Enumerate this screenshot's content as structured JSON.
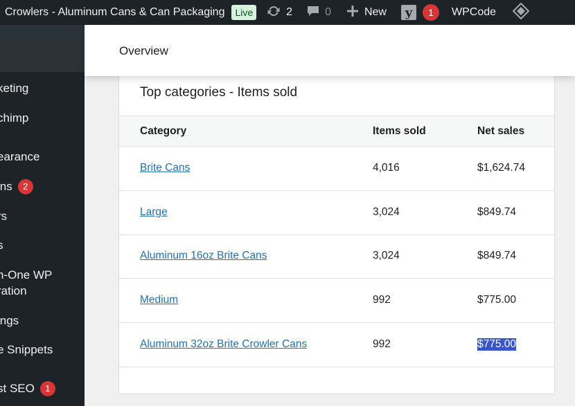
{
  "adminbar": {
    "site_title": "Crowlers - Aluminum Cans & Can Packaging",
    "live_label": "Live",
    "updates_count": "2",
    "comments_count": "0",
    "new_label": "New",
    "yoast_letter": "y",
    "yoast_badge": "1",
    "wpcode_label": "WPCode",
    "icons": [
      "updates-icon",
      "comments-icon",
      "plus-icon",
      "yoast-icon",
      "diamond-icon"
    ]
  },
  "sidebar": {
    "items": [
      {
        "label": "keting"
      },
      {
        "label": "chimp"
      },
      {
        "label": "earance"
      },
      {
        "label": "ins",
        "badge": "2"
      },
      {
        "label": "rs"
      },
      {
        "label": "s"
      },
      {
        "label": "n-One WP"
      },
      {
        "label": "ration"
      },
      {
        "label": "ings"
      },
      {
        "label": "e Snippets"
      },
      {
        "label": "st SEO",
        "badge": "1"
      }
    ]
  },
  "header": {
    "title": "Overview"
  },
  "card": {
    "title": "Top categories - Items sold",
    "columns": [
      "Category",
      "Items sold",
      "Net sales"
    ],
    "rows": [
      {
        "category": "Brite Cans",
        "items_sold": "4,016",
        "net_sales": "$1,624.74"
      },
      {
        "category": "Large",
        "items_sold": "3,024",
        "net_sales": "$849.74"
      },
      {
        "category": "Aluminum 16oz Brite Cans",
        "items_sold": "3,024",
        "net_sales": "$849.74"
      },
      {
        "category": "Medium",
        "items_sold": "992",
        "net_sales": "$775.00"
      },
      {
        "category": "Aluminum 32oz Brite Crowler Cans",
        "items_sold": "992",
        "net_sales": "$775.00"
      }
    ]
  },
  "colors": {
    "adminbar_bg": "#1d2327",
    "link": "#2271b1",
    "badge": "#d63638",
    "selection": "#3a54c9"
  }
}
